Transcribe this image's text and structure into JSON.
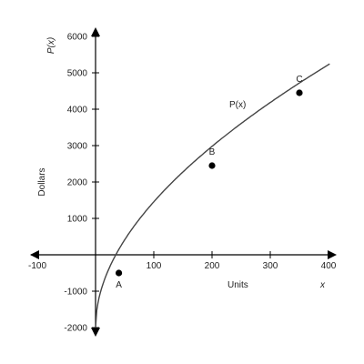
{
  "chart_data": {
    "type": "line",
    "title": "",
    "xlabel": "Units",
    "xlabel_right": "x",
    "ylabel": "Dollars",
    "ylabel_top": "P(x)",
    "curve_label": "P(x)",
    "xlim": [
      -100,
      400
    ],
    "ylim": [
      -2000,
      6000
    ],
    "x_ticks": [
      -100,
      100,
      200,
      300,
      400
    ],
    "y_ticks": [
      -2000,
      -1000,
      1000,
      2000,
      3000,
      4000,
      5000,
      6000
    ],
    "grid": false,
    "series": [
      {
        "x": [
          0,
          5,
          10,
          20,
          30,
          40,
          60,
          80,
          100,
          125,
          150,
          175,
          200,
          225,
          250,
          275,
          300,
          325,
          350,
          375,
          400
        ],
        "y": [
          -2000,
          -1200,
          -860,
          -380,
          -20,
          -500,
          430,
          880,
          1180,
          1560,
          1900,
          2200,
          2450,
          2960,
          3180,
          3550,
          3880,
          4200,
          4450,
          4750,
          5000
        ]
      }
    ],
    "points": [
      {
        "label": "A",
        "x": 40,
        "y": -500
      },
      {
        "label": "B",
        "x": 200,
        "y": 2450
      },
      {
        "label": "C",
        "x": 350,
        "y": 4450
      }
    ],
    "colors": {
      "axis": "#000000",
      "curve": "#444444",
      "point": "#000000"
    }
  }
}
